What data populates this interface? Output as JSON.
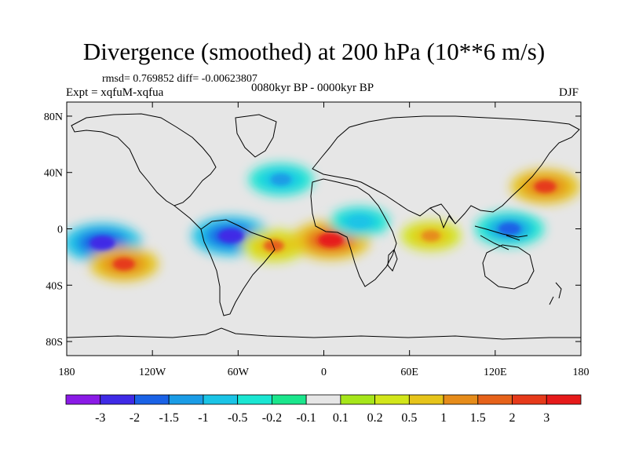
{
  "chart_data": {
    "type": "heatmap",
    "title": "Divergence (smoothed) at 200 hPa (10**6 m/s)",
    "stats": "rmsd= 0.769852 diff= -0.00623807",
    "experiment": "Expt = xqfuM-xqfua",
    "period": "0080kyr BP - 0000kyr BP",
    "season": "DJF",
    "x_ticks": [
      "180",
      "120W",
      "60W",
      "0",
      "60E",
      "120E",
      "180"
    ],
    "y_ticks": [
      "80N",
      "40N",
      "0",
      "40S",
      "80S"
    ],
    "lon_range": [
      -180,
      180
    ],
    "lat_range": [
      -90,
      90
    ],
    "colorbar": {
      "labels": [
        "-3",
        "-2",
        "-1.5",
        "-1",
        "-0.5",
        "-0.2",
        "-0.1",
        "0.1",
        "0.2",
        "0.5",
        "1",
        "1.5",
        "2",
        "3"
      ],
      "colors": [
        "#8a1ae6",
        "#3f2ae6",
        "#1a62e6",
        "#1a9ce6",
        "#1ac4e6",
        "#1ae6d2",
        "#1ae68c",
        "#e6e6e6",
        "#a6e61a",
        "#d2e61a",
        "#e6c41a",
        "#e68c1a",
        "#e6621a",
        "#e63a1a",
        "#e61a1a"
      ]
    },
    "regions": [
      {
        "name": "central-pacific-convergence",
        "lon": -155,
        "lat": -10,
        "value": -3
      },
      {
        "name": "south-pacific-divergence",
        "lon": -140,
        "lat": -25,
        "value": 2
      },
      {
        "name": "amazon-convergence",
        "lon": -65,
        "lat": -5,
        "value": -3
      },
      {
        "name": "brazil-divergence",
        "lon": -35,
        "lat": -12,
        "value": 1.5
      },
      {
        "name": "gulf-guinea-divergence",
        "lon": 5,
        "lat": -8,
        "value": 3
      },
      {
        "name": "africa-convergence",
        "lon": 25,
        "lat": 5,
        "value": -1
      },
      {
        "name": "indian-ocean-divergence",
        "lon": 75,
        "lat": -5,
        "value": 1
      },
      {
        "name": "maritime-continent-convergence",
        "lon": 130,
        "lat": 0,
        "value": -2
      },
      {
        "name": "north-pacific-divergence",
        "lon": 155,
        "lat": 30,
        "value": 2
      },
      {
        "name": "north-atlantic-convergence",
        "lon": -30,
        "lat": 35,
        "value": -1.5
      }
    ]
  }
}
